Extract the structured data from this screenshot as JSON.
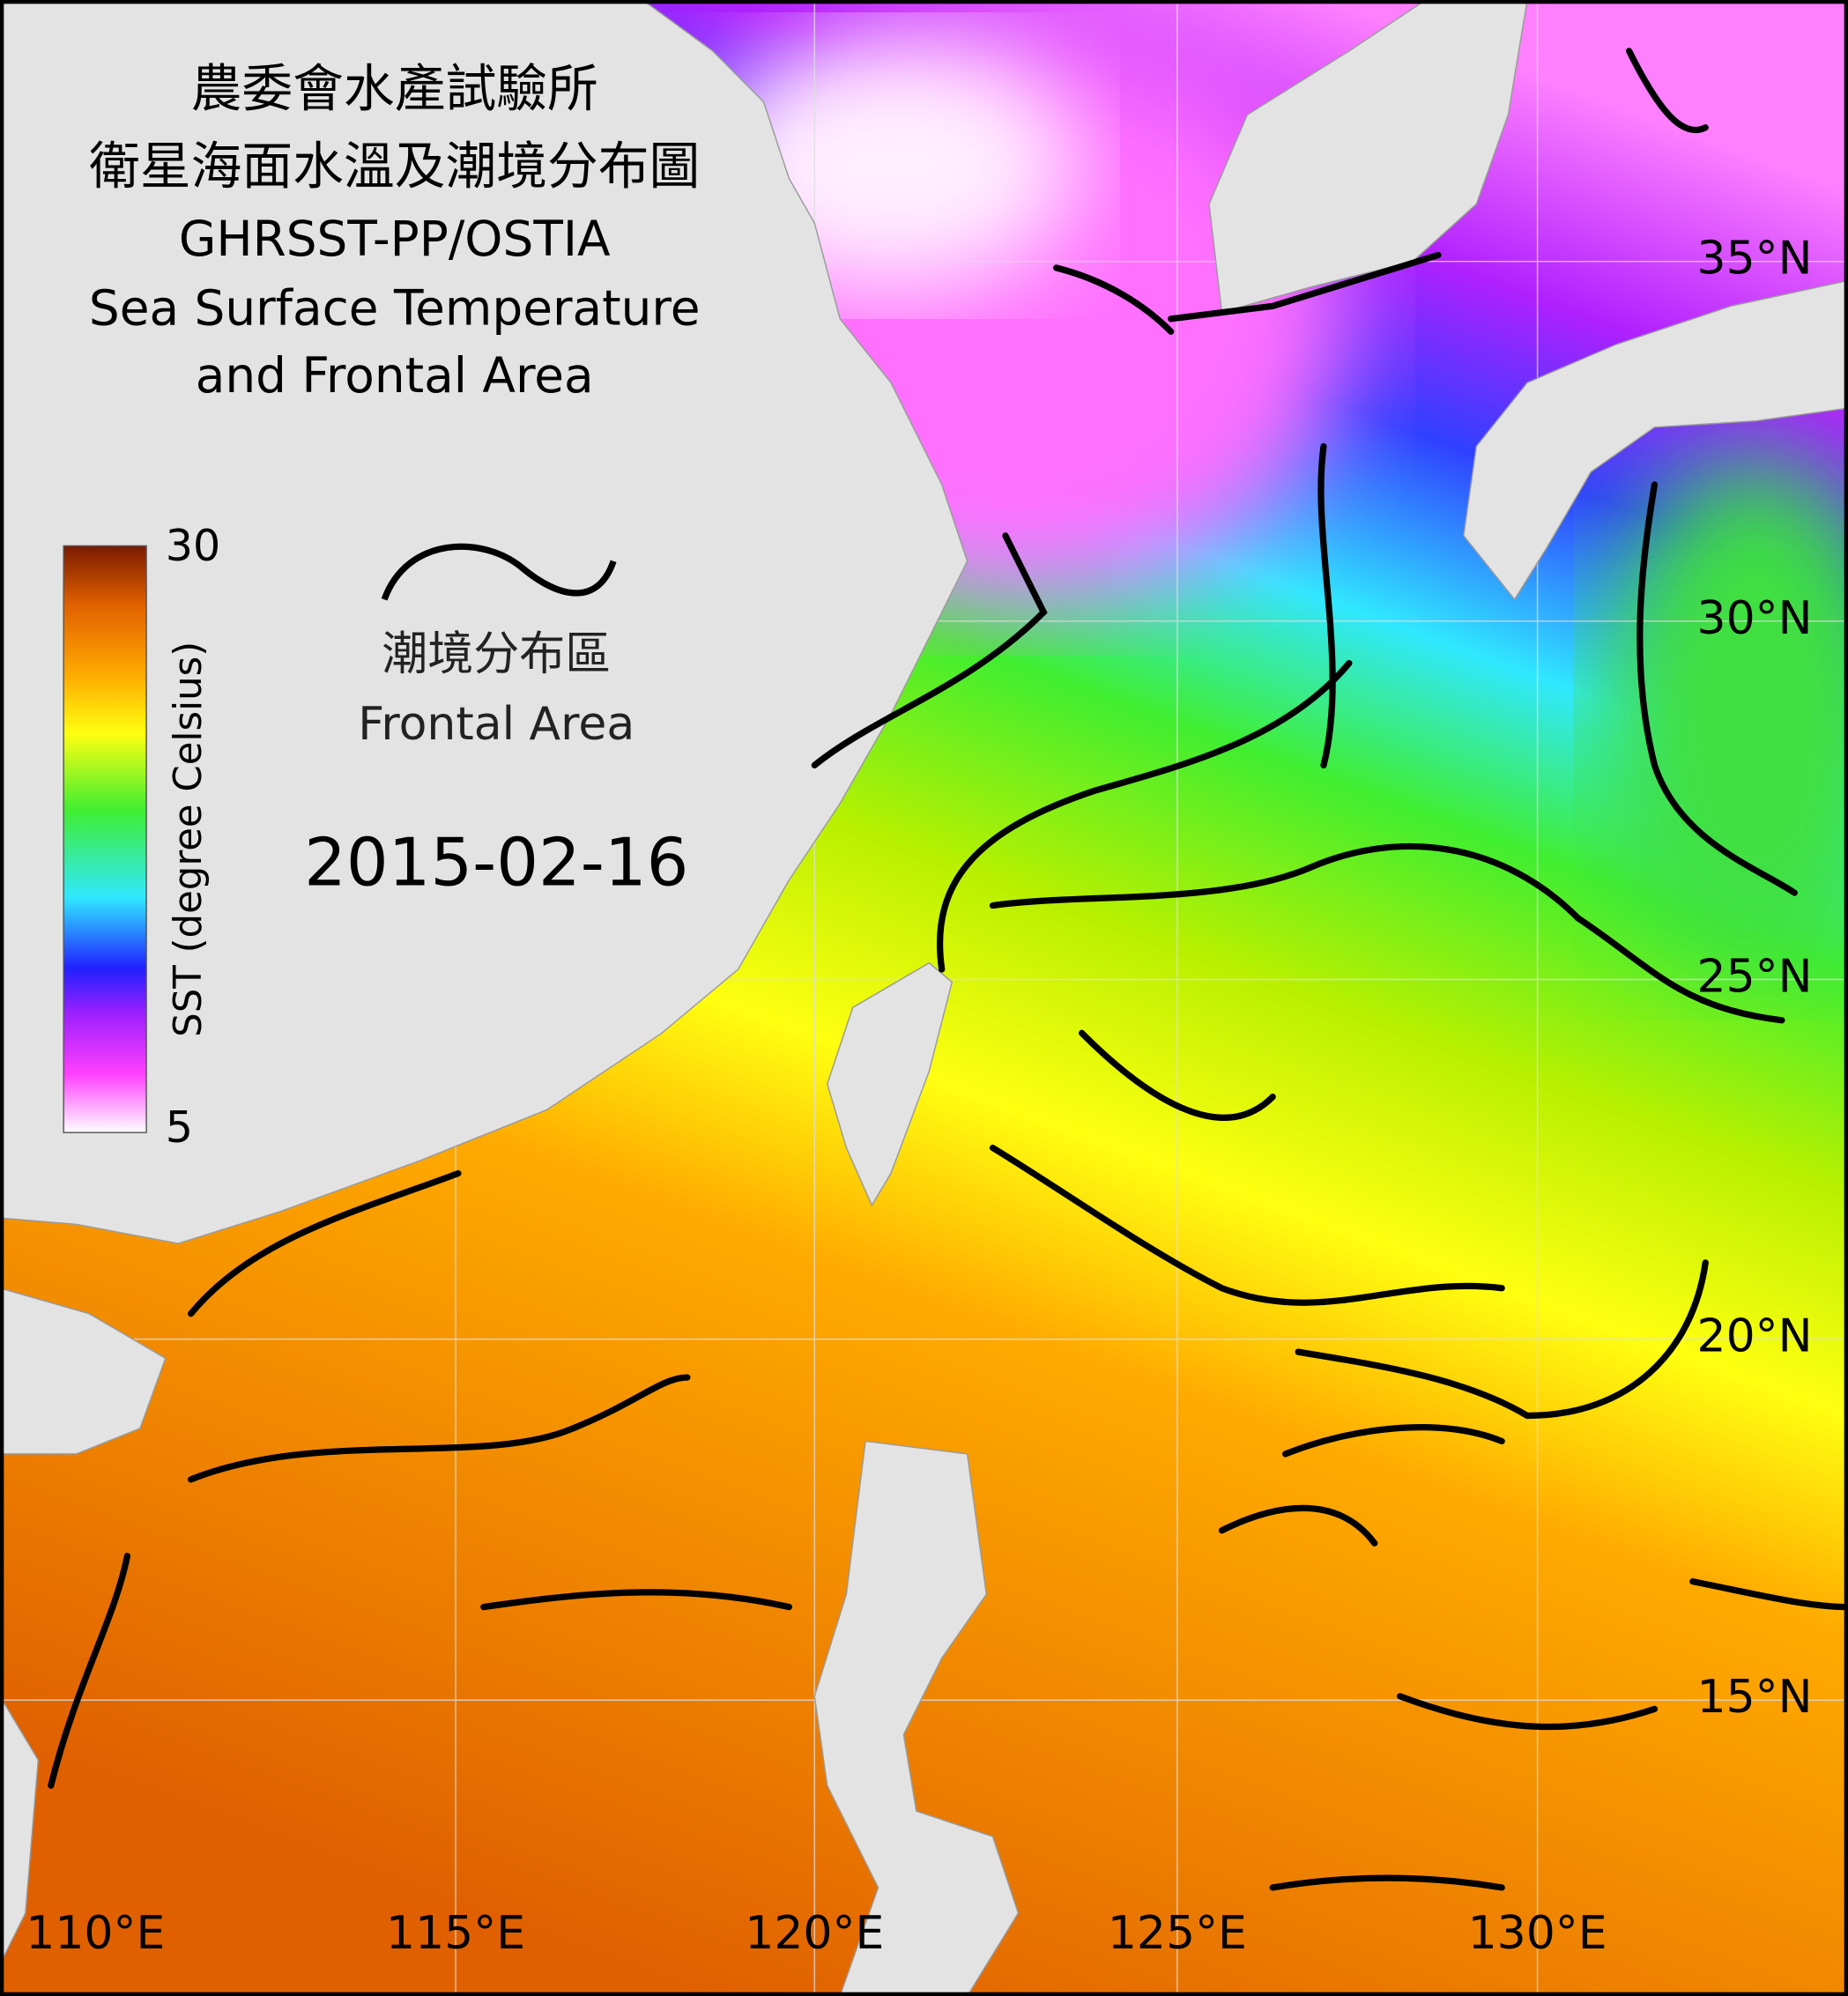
{
  "title": [
    "農委會水產試驗所",
    "衛星海面水溫及潮境分布圖",
    "GHRSST-PP/OSTIA",
    "Sea Surface Temperature",
    "and Frontal Area"
  ],
  "colorbar": {
    "label": "SST (degree Celsius)",
    "max": 30,
    "min": 5
  },
  "legend": {
    "label_zh": "潮境分布區",
    "label_en": "Frontal Area"
  },
  "date": "2015-02-16",
  "lon_labels": [
    "110°E",
    "115°E",
    "120°E",
    "125°E",
    "130°E"
  ],
  "lat_labels": [
    "35°N",
    "30°N",
    "25°N",
    "20°N",
    "15°N"
  ]
}
